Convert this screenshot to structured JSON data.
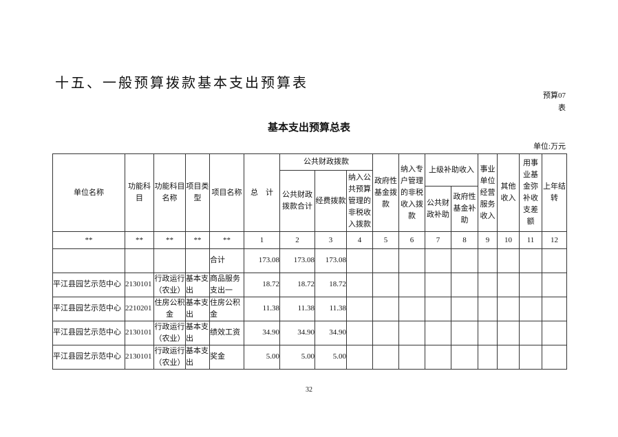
{
  "page_title": "十五、一般预算拨款基本支出预算表",
  "form_code_line1": "预算07",
  "form_code_line2": "表",
  "table_title": "基本支出预算总表",
  "unit": "单位:万元",
  "page_number": "32",
  "headers": {
    "unit_name": "单位名称",
    "func_code": "功能科目",
    "func_name": "功能科目名称",
    "proj_type": "项目类型",
    "proj_name": "项目名称",
    "total": "总　计",
    "public_finance": "公共财政拨款",
    "pf_total": "公共财政拨款合计",
    "pf_funding": "经费拨款",
    "pf_nontax": "纳入公共预算管理的非税收入拨款",
    "gov_fund": "政府性基金拨款",
    "special_nontax": "纳入专户管理的非税收入拨款",
    "superior": "上级补助收入",
    "sup_public": "公共财政补助",
    "sup_gov": "政府性基金补助",
    "business": "事业单位经营服务收入",
    "other": "其他收入",
    "fund_gap": "用事业基金弥补收支差额",
    "carryover": "上年结转"
  },
  "index_row": [
    "**",
    "**",
    "**",
    "**",
    "**",
    "1",
    "2",
    "3",
    "4",
    "5",
    "6",
    "7",
    "8",
    "9",
    "10",
    "11",
    "12"
  ],
  "rows": [
    {
      "unit": "",
      "code": "",
      "func": "",
      "type": "",
      "name": "合计",
      "total": "173.08",
      "pf_total": "173.08",
      "pf_funding": "173.08"
    },
    {
      "unit": "平江县园艺示范中心",
      "code": "2130101",
      "func": "行政运行（农业）",
      "type": "基本支出",
      "name": "商品服务支出一",
      "total": "18.72",
      "pf_total": "18.72",
      "pf_funding": "18.72"
    },
    {
      "unit": "平江县园艺示范中心",
      "code": "2210201",
      "func": "住房公积金",
      "type": "基本支出",
      "name": "住房公积金",
      "total": "11.38",
      "pf_total": "11.38",
      "pf_funding": "11.38"
    },
    {
      "unit": "平江县园艺示范中心",
      "code": "2130101",
      "func": "行政运行（农业）",
      "type": "基本支出",
      "name": "绩效工资",
      "total": "34.90",
      "pf_total": "34.90",
      "pf_funding": "34.90"
    },
    {
      "unit": "平江县园艺示范中心",
      "code": "2130101",
      "func": "行政运行（农业）",
      "type": "基本支出",
      "name": "奖金",
      "total": "5.00",
      "pf_total": "5.00",
      "pf_funding": "5.00"
    }
  ]
}
